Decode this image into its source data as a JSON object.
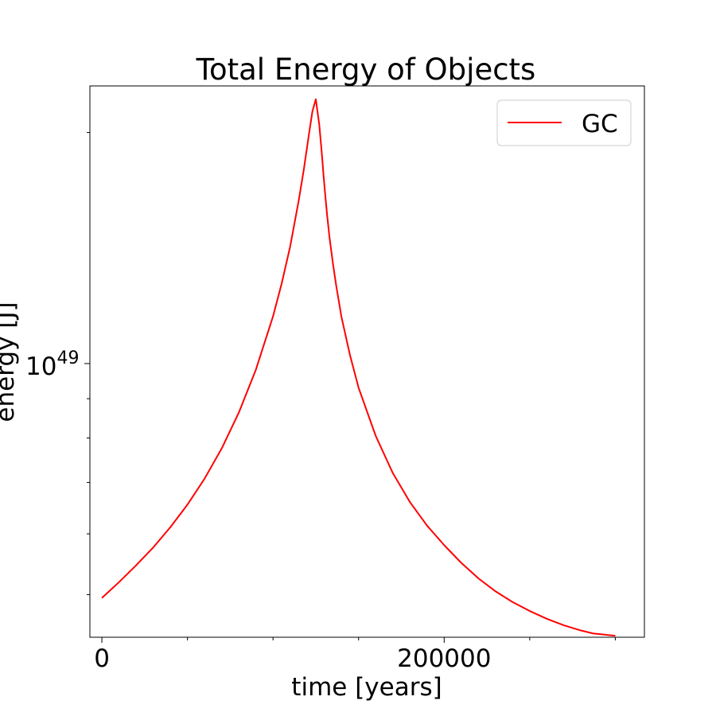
{
  "chart_data": {
    "type": "line",
    "title": "Total Energy of Objects",
    "xlabel": "time [years]",
    "ylabel": "energy [J]",
    "xscale": "linear",
    "yscale": "log",
    "xlim": [
      -7000,
      317000
    ],
    "ylim": [
      4.4e+48,
      2.3e+49
    ],
    "x_ticks": [
      {
        "value": 0,
        "label": "0"
      },
      {
        "value": 200000,
        "label": "200000"
      }
    ],
    "x_minor_ticks": [
      50000,
      100000,
      150000,
      250000,
      300000
    ],
    "y_ticks": [
      {
        "value": 1e+49,
        "base": "10",
        "exponent": "49"
      }
    ],
    "y_minor_ticks": [
      5e+48,
      6e+48,
      7e+48,
      8e+48,
      9e+48,
      2e+49
    ],
    "grid": false,
    "legend": "top-right",
    "series": [
      {
        "name": "GC",
        "color": "#ff0000",
        "x": [
          0,
          10000,
          20000,
          30000,
          40000,
          50000,
          60000,
          70000,
          80000,
          90000,
          100000,
          105000,
          110000,
          115000,
          118000,
          121000,
          123000,
          125000,
          127000,
          128500,
          129500,
          130500,
          131500,
          133000,
          135000,
          137000,
          140000,
          145000,
          150000,
          160000,
          170000,
          180000,
          190000,
          200000,
          210000,
          220000,
          230000,
          240000,
          250000,
          260000,
          270000,
          280000,
          287000,
          300000
        ],
        "y": [
          4.95e+48,
          5.19e+48,
          5.46e+48,
          5.76e+48,
          6.12e+48,
          6.55e+48,
          7.08e+48,
          7.75e+48,
          8.63e+48,
          9.82e+48,
          1.152e+49,
          1.27e+49,
          1.42e+49,
          1.63e+49,
          1.79e+49,
          1.99e+49,
          2.13e+49,
          2.21e+49,
          2.05e+49,
          1.88e+49,
          1.76e+49,
          1.66e+49,
          1.57e+49,
          1.46e+49,
          1.35e+49,
          1.26e+49,
          1.15e+49,
          1.025e+49,
          9.3e+48,
          8.05e+48,
          7.2e+48,
          6.6e+48,
          6.15e+48,
          5.8e+48,
          5.5e+48,
          5.25e+48,
          5.05e+48,
          4.89e+48,
          4.76e+48,
          4.65e+48,
          4.56e+48,
          4.49e+48,
          4.45e+48,
          4.42e+48
        ]
      }
    ]
  }
}
